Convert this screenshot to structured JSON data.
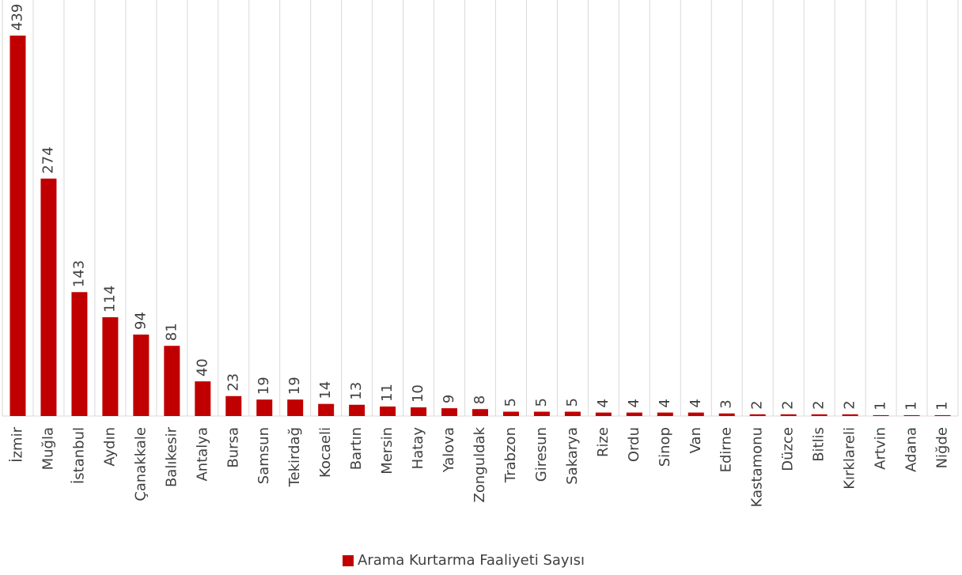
{
  "chart_data": {
    "type": "bar",
    "categories": [
      "İzmir",
      "Muğla",
      "İstanbul",
      "Aydın",
      "Çanakkale",
      "Balıkesir",
      "Antalya",
      "Bursa",
      "Samsun",
      "Tekirdağ",
      "Kocaeli",
      "Bartın",
      "Mersin",
      "Hatay",
      "Yalova",
      "Zonguldak",
      "Trabzon",
      "Giresun",
      "Sakarya",
      "Rize",
      "Ordu",
      "Sinop",
      "Van",
      "Edirne",
      "Kastamonu",
      "Düzce",
      "Bitlis",
      "Kırklareli",
      "Artvin",
      "Adana",
      "Niğde"
    ],
    "series": [
      {
        "name": "Arama Kurtarma Faaliyeti Sayısı",
        "color": "#c00000",
        "values": [
          439,
          274,
          143,
          114,
          94,
          81,
          40,
          23,
          19,
          19,
          14,
          13,
          11,
          10,
          9,
          8,
          5,
          5,
          5,
          4,
          4,
          4,
          4,
          3,
          2,
          2,
          2,
          2,
          1,
          1,
          1
        ]
      }
    ],
    "grid": true,
    "legend": "bottom"
  }
}
